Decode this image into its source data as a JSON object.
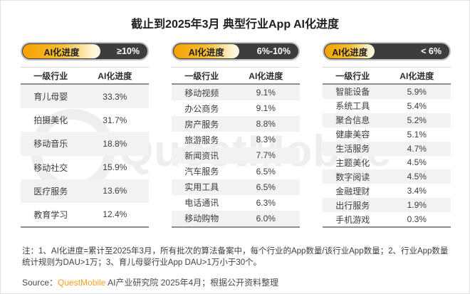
{
  "title": "截止到2025年3月 典型行业App AI化进度",
  "colors": {
    "accent_gold": "#F5A100",
    "pill_dark": "#3D3D3D",
    "row_stripe": "#F2F2F2",
    "brand_orange": "#F5A11B"
  },
  "watermark": "QuestMobile",
  "tables": [
    {
      "badge_label": "AI化进度",
      "badge_range": "≥10%",
      "badge_fill": "62%",
      "col_industry": "一级行业",
      "col_progress": "AI化进度",
      "rows": [
        {
          "industry": "育儿母婴",
          "progress": "33.3%"
        },
        {
          "industry": "拍摄美化",
          "progress": "31.7%"
        },
        {
          "industry": "移动音乐",
          "progress": "18.8%"
        },
        {
          "industry": "移动社交",
          "progress": "15.9%"
        },
        {
          "industry": "医疗服务",
          "progress": "13.6%"
        },
        {
          "industry": "教育学习",
          "progress": "12.4%"
        }
      ]
    },
    {
      "badge_label": "AI化进度",
      "badge_range": "6%-10%",
      "badge_fill": "52%",
      "col_industry": "一级行业",
      "col_progress": "AI化进度",
      "rows": [
        {
          "industry": "移动视频",
          "progress": "9.1%"
        },
        {
          "industry": "办公商务",
          "progress": "9.1%"
        },
        {
          "industry": "房产服务",
          "progress": "8.8%"
        },
        {
          "industry": "旅游服务",
          "progress": "8.3%"
        },
        {
          "industry": "新闻资讯",
          "progress": "7.7%"
        },
        {
          "industry": "汽车服务",
          "progress": "6.5%"
        },
        {
          "industry": "实用工具",
          "progress": "6.5%"
        },
        {
          "industry": "电话通讯",
          "progress": "6.3%"
        },
        {
          "industry": "移动购物",
          "progress": "6.0%"
        }
      ]
    },
    {
      "badge_label": "AI化进度",
      "badge_range": "< 6%",
      "badge_fill": "40%",
      "col_industry": "一级行业",
      "col_progress": "AI化进度",
      "rows": [
        {
          "industry": "智能设备",
          "progress": "5.9%"
        },
        {
          "industry": "系统工具",
          "progress": "5.4%"
        },
        {
          "industry": "聚合信息",
          "progress": "5.2%"
        },
        {
          "industry": "健康美容",
          "progress": "5.1%"
        },
        {
          "industry": "生活服务",
          "progress": "4.7%"
        },
        {
          "industry": "主题美化",
          "progress": "4.5%"
        },
        {
          "industry": "数字阅读",
          "progress": "4.5%"
        },
        {
          "industry": "金融理财",
          "progress": "3.4%"
        },
        {
          "industry": "出行服务",
          "progress": "1.9%"
        },
        {
          "industry": "手机游戏",
          "progress": "0.3%"
        }
      ]
    }
  ],
  "note": "注：1、AI化进度=累计至2025年3月，所有批次的算法备案中，每个行业的App数量/该行业App数量；2、行业App数量统计规则为DAU>1万；3、育儿母婴行业App DAU>1万小于30个。",
  "source": {
    "prefix": "Source：",
    "brand": "QuestMobile",
    "suffix": " AI产业研究院 2025年4月；根据公开资料整理"
  },
  "chart_data": {
    "type": "table",
    "title": "截止到2025年3月 典型行业App AI化进度",
    "tables": [
      {
        "group": "AI化进度 ≥10%",
        "columns": [
          "一级行业",
          "AI化进度"
        ],
        "rows": [
          [
            "育儿母婴",
            33.3
          ],
          [
            "拍摄美化",
            31.7
          ],
          [
            "移动音乐",
            18.8
          ],
          [
            "移动社交",
            15.9
          ],
          [
            "医疗服务",
            13.6
          ],
          [
            "教育学习",
            12.4
          ]
        ],
        "unit": "%"
      },
      {
        "group": "AI化进度 6%-10%",
        "columns": [
          "一级行业",
          "AI化进度"
        ],
        "rows": [
          [
            "移动视频",
            9.1
          ],
          [
            "办公商务",
            9.1
          ],
          [
            "房产服务",
            8.8
          ],
          [
            "旅游服务",
            8.3
          ],
          [
            "新闻资讯",
            7.7
          ],
          [
            "汽车服务",
            6.5
          ],
          [
            "实用工具",
            6.5
          ],
          [
            "电话通讯",
            6.3
          ],
          [
            "移动购物",
            6.0
          ]
        ],
        "unit": "%"
      },
      {
        "group": "AI化进度 < 6%",
        "columns": [
          "一级行业",
          "AI化进度"
        ],
        "rows": [
          [
            "智能设备",
            5.9
          ],
          [
            "系统工具",
            5.4
          ],
          [
            "聚合信息",
            5.2
          ],
          [
            "健康美容",
            5.1
          ],
          [
            "生活服务",
            4.7
          ],
          [
            "主题美化",
            4.5
          ],
          [
            "数字阅读",
            4.5
          ],
          [
            "金融理财",
            3.4
          ],
          [
            "出行服务",
            1.9
          ],
          [
            "手机游戏",
            0.3
          ]
        ],
        "unit": "%"
      }
    ]
  }
}
